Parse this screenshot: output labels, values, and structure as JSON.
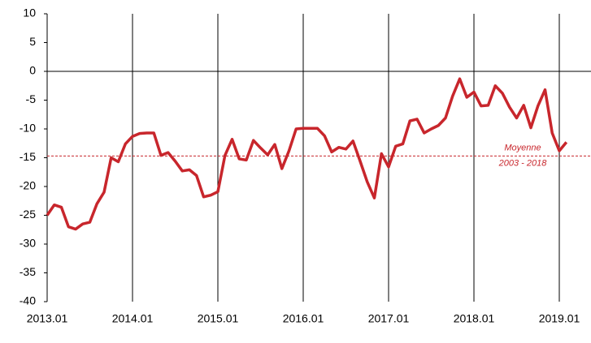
{
  "chart_data": {
    "type": "line",
    "x": [
      "2013.01",
      "2013.02",
      "2013.03",
      "2013.04",
      "2013.05",
      "2013.06",
      "2013.07",
      "2013.08",
      "2013.09",
      "2013.10",
      "2013.11",
      "2013.12",
      "2014.01",
      "2014.02",
      "2014.03",
      "2014.04",
      "2014.05",
      "2014.06",
      "2014.07",
      "2014.08",
      "2014.09",
      "2014.10",
      "2014.11",
      "2014.12",
      "2015.01",
      "2015.02",
      "2015.03",
      "2015.04",
      "2015.05",
      "2015.06",
      "2015.07",
      "2015.08",
      "2015.09",
      "2015.10",
      "2015.11",
      "2015.12",
      "2016.01",
      "2016.02",
      "2016.03",
      "2016.04",
      "2016.05",
      "2016.06",
      "2016.07",
      "2016.08",
      "2016.09",
      "2016.10",
      "2016.11",
      "2016.12",
      "2017.01",
      "2017.02",
      "2017.03",
      "2017.04",
      "2017.05",
      "2017.06",
      "2017.07",
      "2017.08",
      "2017.09",
      "2017.10",
      "2017.11",
      "2017.12",
      "2018.01",
      "2018.02",
      "2018.03",
      "2018.04",
      "2018.05",
      "2018.06",
      "2018.07",
      "2018.08",
      "2018.09",
      "2018.10",
      "2018.11",
      "2018.12",
      "2019.01",
      "2019.02"
    ],
    "series": [
      {
        "color": "#c8262c",
        "values": [
          -25,
          -23.2,
          -23.6,
          -27,
          -27.4,
          -26.5,
          -26.2,
          -23,
          -21,
          -15,
          -15.7,
          -12.6,
          -11.3,
          -10.8,
          -10.7,
          -10.7,
          -14.6,
          -14.1,
          -15.6,
          -17.3,
          -17.1,
          -18.1,
          -21.8,
          -21.5,
          -20.9,
          -14.6,
          -11.8,
          -15.2,
          -15.4,
          -12,
          -13.3,
          -14.5,
          -12.7,
          -16.9,
          -13.8,
          -10,
          -9.9,
          -9.9,
          -9.9,
          -11.2,
          -14,
          -13.2,
          -13.5,
          -12.1,
          -15.6,
          -19.2,
          -22,
          -14.3,
          -16.6,
          -13,
          -12.6,
          -8.6,
          -8.3,
          -10.7,
          -10,
          -9.4,
          -8.1,
          -4.3,
          -1.3,
          -4.5,
          -3.6,
          -6,
          -5.9,
          -2.5,
          -3.8,
          -6.2,
          -8.1,
          -5.9,
          -9.8,
          -6,
          -3.2,
          -10.7,
          -13.8,
          -12.3
        ]
      }
    ],
    "xticks": [
      "2013.01",
      "2014.01",
      "2015.01",
      "2016.01",
      "2017.01",
      "2018.01",
      "2019.01"
    ],
    "ylim": [
      -40,
      10
    ],
    "yticks": [
      10,
      5,
      0,
      -5,
      -10,
      -15,
      -20,
      -25,
      -30,
      -35,
      -40
    ],
    "reference_line": {
      "value": -14.7,
      "color": "#c8262c",
      "label": [
        "Moyenne",
        "2003 - 2018"
      ]
    }
  }
}
